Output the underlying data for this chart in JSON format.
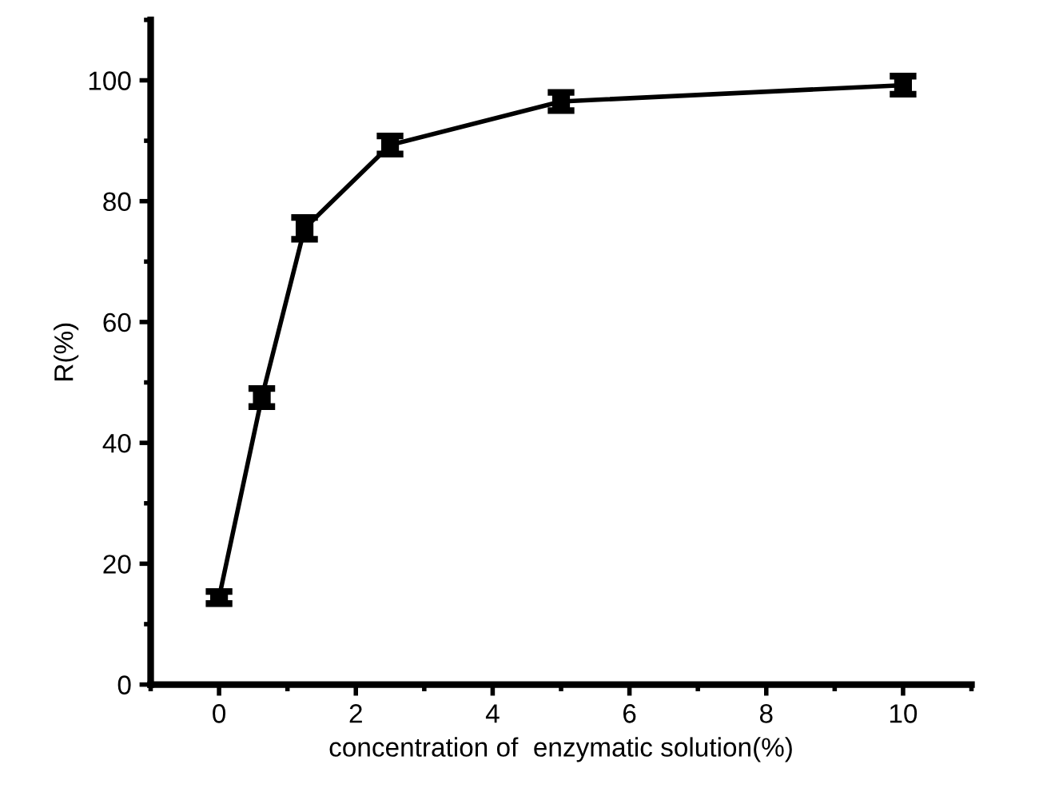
{
  "chart_data": {
    "type": "line",
    "xlabel": "concentration of  enzymatic solution(%)",
    "ylabel": "R(%)",
    "x": [
      0,
      0.625,
      1.25,
      2.5,
      5,
      10
    ],
    "series": [
      {
        "color": "#000000",
        "values": [
          14.4,
          47.5,
          75.5,
          89.3,
          96.5,
          99.2
        ],
        "errors": [
          1,
          1.5,
          1.8,
          1.5,
          1.5,
          1.5
        ]
      }
    ],
    "xlim": [
      -1,
      11
    ],
    "ylim": [
      0,
      110
    ],
    "xticks": [
      0,
      2,
      4,
      6,
      8,
      10
    ],
    "yticks": [
      0,
      20,
      40,
      60,
      80,
      100
    ],
    "grid": false,
    "legend": false,
    "marker": "square",
    "line_style": "solid"
  }
}
